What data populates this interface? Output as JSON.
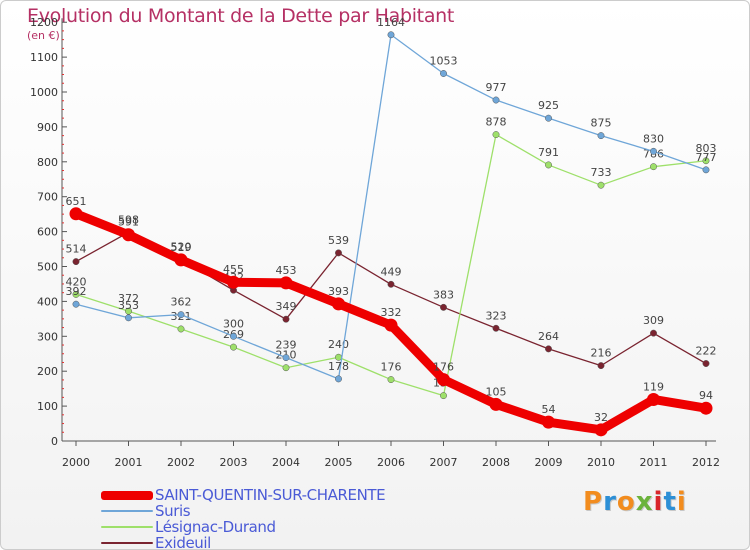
{
  "title": "Evolution du Montant de la Dette par Habitant",
  "subtitle": "(en €)",
  "logo": {
    "letters": [
      "P",
      "r",
      "o",
      "x",
      "i",
      "t",
      "i"
    ],
    "colors": [
      "#f28c1e",
      "#2c8fd6",
      "#f28c1e",
      "#6bb33b",
      "#d9262b",
      "#2c8fd6",
      "#f28c1e"
    ]
  },
  "chart_data": {
    "type": "line",
    "x": [
      2000,
      2001,
      2002,
      2003,
      2004,
      2005,
      2006,
      2007,
      2008,
      2009,
      2010,
      2011,
      2012
    ],
    "x_tick_labels": [
      "2000",
      "2001",
      "2002",
      "2003",
      "2004",
      "2005",
      "2006",
      "2007",
      "2008",
      "2009",
      "2010",
      "2011",
      "2012"
    ],
    "ylim": [
      0,
      1200
    ],
    "y_ticks": [
      0,
      100,
      200,
      300,
      400,
      500,
      600,
      700,
      800,
      900,
      1000,
      1100,
      1200
    ],
    "grid": false,
    "legend_position": "bottom-left",
    "series": [
      {
        "name": "Exideuil",
        "color": "#7a2430",
        "values": [
          514,
          598,
          520,
          432,
          349,
          539,
          449,
          383,
          323,
          264,
          216,
          309,
          222
        ],
        "labels": [
          "514",
          "598",
          "520",
          "432",
          "349",
          "539",
          "449",
          "383",
          "323",
          "264",
          "216",
          "309",
          "222"
        ]
      },
      {
        "name": "Lésignac-Durand",
        "color": "#9ee06a",
        "values": [
          420,
          372,
          321,
          269,
          210,
          240,
          176,
          130,
          878,
          791,
          733,
          786,
          803
        ],
        "labels": [
          "420",
          "372",
          "321",
          "269",
          "210",
          "240",
          "176",
          "130",
          "878",
          "791",
          "733",
          "786",
          "803"
        ]
      },
      {
        "name": "Suris",
        "color": "#6fa6d8",
        "values": [
          392,
          353,
          362,
          300,
          239,
          178,
          1164,
          1053,
          977,
          925,
          875,
          830,
          777
        ],
        "labels": [
          "392",
          "353",
          "362",
          "300",
          "239",
          "178",
          "1164",
          "1053",
          "977",
          "925",
          "875",
          "830",
          "777"
        ]
      },
      {
        "name": "SAINT-QUENTIN-SUR-CHARENTE",
        "color": "#ee0000",
        "values": [
          651,
          591,
          519,
          455,
          453,
          393,
          332,
          176,
          105,
          54,
          32,
          119,
          94
        ],
        "labels": [
          "651",
          "591",
          "519",
          "455",
          "453",
          "393",
          "332",
          "176",
          "105",
          "54",
          "32",
          "119",
          "94"
        ]
      }
    ],
    "legend": [
      "SAINT-QUENTIN-SUR-CHARENTE",
      "Suris",
      "Lésignac-Durand",
      "Exideuil"
    ]
  }
}
